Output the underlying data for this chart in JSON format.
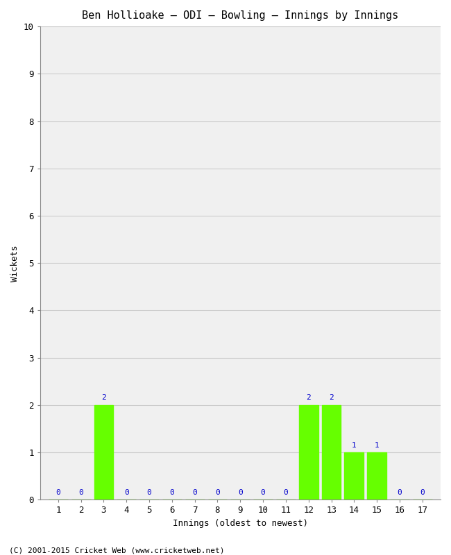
{
  "title": "Ben Hollioake – ODI – Bowling – Innings by Innings",
  "xlabel": "Innings (oldest to newest)",
  "ylabel": "Wickets",
  "innings": [
    1,
    2,
    3,
    4,
    5,
    6,
    7,
    8,
    9,
    10,
    11,
    12,
    13,
    14,
    15,
    16,
    17
  ],
  "wickets": [
    0,
    0,
    2,
    0,
    0,
    0,
    0,
    0,
    0,
    0,
    0,
    2,
    2,
    1,
    1,
    0,
    0
  ],
  "bar_color": "#66ff00",
  "label_color": "#0000cc",
  "ylim": [
    0,
    10
  ],
  "yticks": [
    0,
    1,
    2,
    3,
    4,
    5,
    6,
    7,
    8,
    9,
    10
  ],
  "plot_bg_color": "#f0f0f0",
  "fig_bg_color": "#ffffff",
  "footer": "(C) 2001-2015 Cricket Web (www.cricketweb.net)",
  "title_fontsize": 11,
  "axis_fontsize": 9,
  "label_fontsize": 8,
  "footer_fontsize": 8,
  "bar_width": 0.85,
  "grid_color": "#cccccc"
}
